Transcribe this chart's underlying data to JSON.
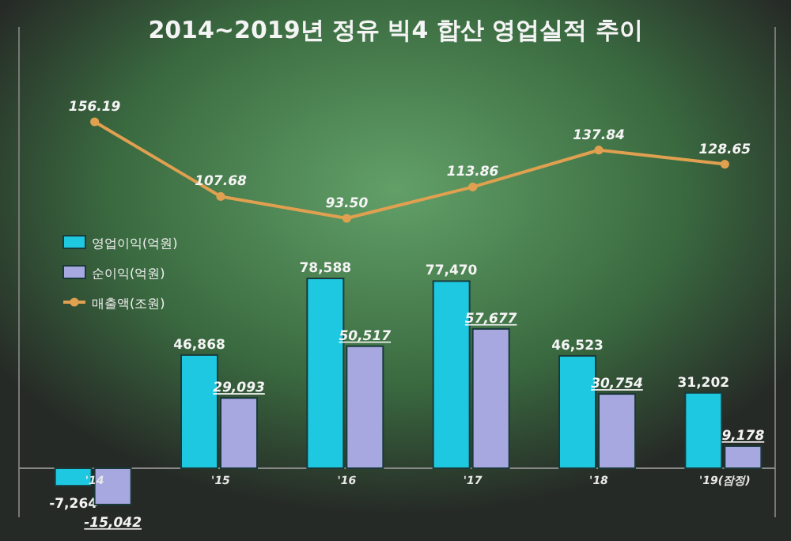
{
  "chart_data": [
    {
      "type": "line",
      "title": "2014~2019년 정유 빅4 합산 영업실적 추이",
      "categories": [
        null,
        null,
        null,
        null,
        null,
        null
      ],
      "series": [
        {
          "name": "매출액(조원)",
          "color": "#e0a050",
          "marker": "circle",
          "values": [
            156.19,
            107.68,
            93.5,
            113.86,
            137.84,
            128.65
          ],
          "value_labels": [
            "156.19",
            "107.68",
            "93.50",
            "113.86",
            "137.84",
            "128.65"
          ]
        }
      ],
      "legend": "left",
      "grid": false
    },
    {
      "type": "bar",
      "categories": [
        "'14",
        "'15",
        "'16",
        "'17",
        "'18",
        "'19(잠정)"
      ],
      "series": [
        {
          "name": "영업이익(억원)",
          "color": "#1ec8e0",
          "values": [
            -7264,
            46868,
            78588,
            77470,
            46523,
            31202
          ],
          "value_labels": [
            "-7,264",
            "46,868",
            "78,588",
            "77,470",
            "46,523",
            "31,202"
          ]
        },
        {
          "name": "순이익(억원)",
          "color": "#a8a8e0",
          "values": [
            -15042,
            29093,
            50517,
            57677,
            30754,
            9178
          ],
          "value_labels": [
            "-15,042",
            "29,093",
            "50,517",
            "57,677",
            "30,754",
            "9,178"
          ]
        }
      ],
      "legend": "left",
      "grid": false
    }
  ]
}
